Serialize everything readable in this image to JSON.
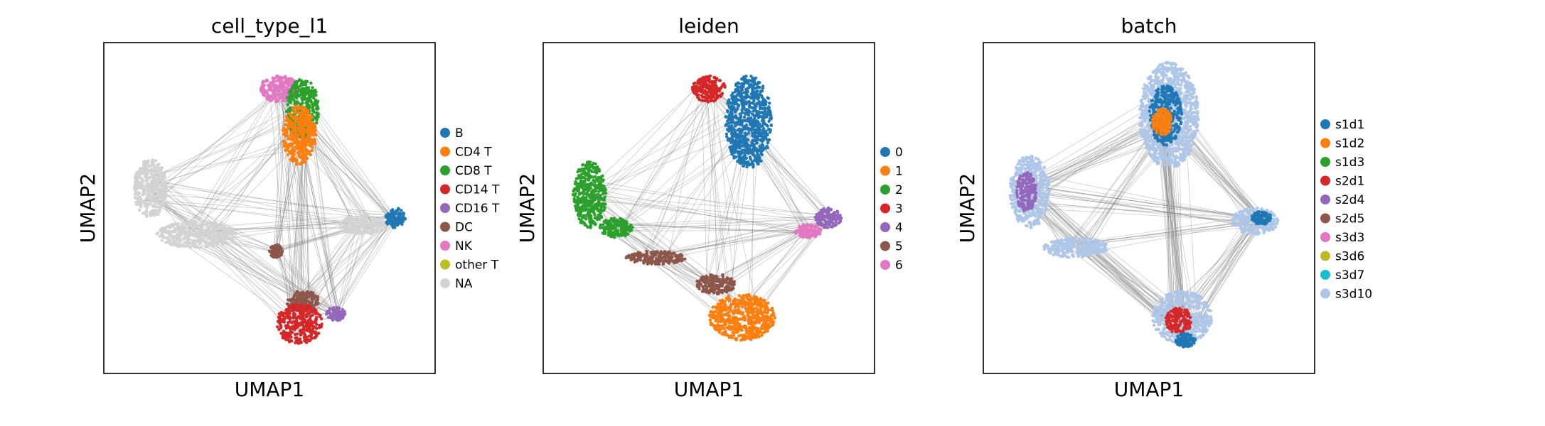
{
  "chart_data": [
    {
      "type": "scatter",
      "title": "cell_type_l1",
      "xlabel": "UMAP1",
      "ylabel": "UMAP2",
      "xlim": [
        0,
        100
      ],
      "ylim": [
        0,
        100
      ],
      "grid": false,
      "legend_position": "right",
      "edge_color": "#808080",
      "legend": [
        {
          "label": "B",
          "color": "#1f77b4"
        },
        {
          "label": "CD4 T",
          "color": "#ff7f0e"
        },
        {
          "label": "CD8 T",
          "color": "#2ca02c"
        },
        {
          "label": "CD14 T",
          "color": "#d62728"
        },
        {
          "label": "CD16 T",
          "color": "#9467bd"
        },
        {
          "label": "DC",
          "color": "#8c564b"
        },
        {
          "label": "NK",
          "color": "#e377c2"
        },
        {
          "label": "other T",
          "color": "#bcbd22"
        },
        {
          "label": "NA",
          "color": "#d3d3d3"
        }
      ],
      "clusters": [
        {
          "name": "NK",
          "color": "#e377c2",
          "x": 53,
          "y": 86,
          "rx": 6,
          "ry": 4
        },
        {
          "name": "CD8 T",
          "color": "#2ca02c",
          "x": 60,
          "y": 80,
          "rx": 5,
          "ry": 9
        },
        {
          "name": "CD4 T",
          "color": "#ff7f0e",
          "x": 59,
          "y": 72,
          "rx": 5,
          "ry": 9
        },
        {
          "name": "NA",
          "color": "#d3d3d3",
          "x": 14,
          "y": 56,
          "rx": 5,
          "ry": 9
        },
        {
          "name": "NA",
          "color": "#d3d3d3",
          "x": 28,
          "y": 42,
          "rx": 12,
          "ry": 4
        },
        {
          "name": "NA",
          "color": "#d3d3d3",
          "x": 78,
          "y": 45,
          "rx": 7,
          "ry": 3
        },
        {
          "name": "B",
          "color": "#1f77b4",
          "x": 88,
          "y": 47,
          "rx": 3,
          "ry": 3
        },
        {
          "name": "DC",
          "color": "#8c564b",
          "x": 52,
          "y": 37,
          "rx": 2,
          "ry": 2
        },
        {
          "name": "DC",
          "color": "#8c564b",
          "x": 60,
          "y": 22,
          "rx": 5,
          "ry": 3
        },
        {
          "name": "CD14 T",
          "color": "#d62728",
          "x": 59,
          "y": 15,
          "rx": 7,
          "ry": 6
        },
        {
          "name": "CD16 T",
          "color": "#9467bd",
          "x": 70,
          "y": 18,
          "rx": 3,
          "ry": 2
        }
      ]
    },
    {
      "type": "scatter",
      "title": "leiden",
      "xlabel": "UMAP1",
      "ylabel": "UMAP2",
      "xlim": [
        0,
        100
      ],
      "ylim": [
        0,
        100
      ],
      "grid": false,
      "legend_position": "right",
      "edge_color": "#808080",
      "legend": [
        {
          "label": "0",
          "color": "#1f77b4"
        },
        {
          "label": "1",
          "color": "#ff7f0e"
        },
        {
          "label": "2",
          "color": "#2ca02c"
        },
        {
          "label": "3",
          "color": "#d62728"
        },
        {
          "label": "4",
          "color": "#9467bd"
        },
        {
          "label": "5",
          "color": "#8c564b"
        },
        {
          "label": "6",
          "color": "#e377c2"
        }
      ],
      "clusters": [
        {
          "name": "3",
          "color": "#d62728",
          "x": 50,
          "y": 86,
          "rx": 5,
          "ry": 4
        },
        {
          "name": "0",
          "color": "#1f77b4",
          "x": 62,
          "y": 76,
          "rx": 7,
          "ry": 14
        },
        {
          "name": "2",
          "color": "#2ca02c",
          "x": 14,
          "y": 54,
          "rx": 5,
          "ry": 10
        },
        {
          "name": "2",
          "color": "#2ca02c",
          "x": 22,
          "y": 44,
          "rx": 5,
          "ry": 3
        },
        {
          "name": "4",
          "color": "#9467bd",
          "x": 86,
          "y": 47,
          "rx": 4,
          "ry": 3
        },
        {
          "name": "6",
          "color": "#e377c2",
          "x": 80,
          "y": 43,
          "rx": 4,
          "ry": 2
        },
        {
          "name": "5",
          "color": "#8c564b",
          "x": 34,
          "y": 35,
          "rx": 9,
          "ry": 2
        },
        {
          "name": "5",
          "color": "#8c564b",
          "x": 52,
          "y": 27,
          "rx": 6,
          "ry": 3
        },
        {
          "name": "1",
          "color": "#ff7f0e",
          "x": 60,
          "y": 17,
          "rx": 10,
          "ry": 7
        }
      ]
    },
    {
      "type": "scatter",
      "title": "batch",
      "xlabel": "UMAP1",
      "ylabel": "UMAP2",
      "xlim": [
        0,
        100
      ],
      "ylim": [
        0,
        100
      ],
      "grid": false,
      "legend_position": "right",
      "edge_color": "#808080",
      "legend": [
        {
          "label": "s1d1",
          "color": "#1f77b4"
        },
        {
          "label": "s1d2",
          "color": "#ff7f0e"
        },
        {
          "label": "s1d3",
          "color": "#2ca02c"
        },
        {
          "label": "s2d1",
          "color": "#d62728"
        },
        {
          "label": "s2d4",
          "color": "#9467bd"
        },
        {
          "label": "s2d5",
          "color": "#8c564b"
        },
        {
          "label": "s3d3",
          "color": "#e377c2"
        },
        {
          "label": "s3d6",
          "color": "#bcbd22"
        },
        {
          "label": "s3d7",
          "color": "#17becf"
        },
        {
          "label": "s3d10",
          "color": "#aec7e8"
        }
      ],
      "clusters": [
        {
          "name": "s3d10",
          "color": "#aec7e8",
          "x": 56,
          "y": 78,
          "rx": 9,
          "ry": 16
        },
        {
          "name": "s1d1",
          "color": "#1f77b4",
          "x": 55,
          "y": 78,
          "rx": 5,
          "ry": 9
        },
        {
          "name": "s1d2",
          "color": "#ff7f0e",
          "x": 54,
          "y": 76,
          "rx": 3,
          "ry": 4
        },
        {
          "name": "s3d10",
          "color": "#aec7e8",
          "x": 14,
          "y": 55,
          "rx": 6,
          "ry": 11
        },
        {
          "name": "s2d4",
          "color": "#9467bd",
          "x": 13,
          "y": 55,
          "rx": 3,
          "ry": 6
        },
        {
          "name": "s3d10",
          "color": "#aec7e8",
          "x": 28,
          "y": 38,
          "rx": 10,
          "ry": 3
        },
        {
          "name": "s3d10",
          "color": "#aec7e8",
          "x": 82,
          "y": 46,
          "rx": 7,
          "ry": 4
        },
        {
          "name": "s1d1",
          "color": "#1f77b4",
          "x": 84,
          "y": 47,
          "rx": 3,
          "ry": 2
        },
        {
          "name": "s3d10",
          "color": "#aec7e8",
          "x": 60,
          "y": 17,
          "rx": 9,
          "ry": 8
        },
        {
          "name": "s2d1",
          "color": "#d62728",
          "x": 59,
          "y": 16,
          "rx": 4,
          "ry": 4
        },
        {
          "name": "s1d1",
          "color": "#1f77b4",
          "x": 61,
          "y": 10,
          "rx": 3,
          "ry": 2
        }
      ]
    }
  ]
}
